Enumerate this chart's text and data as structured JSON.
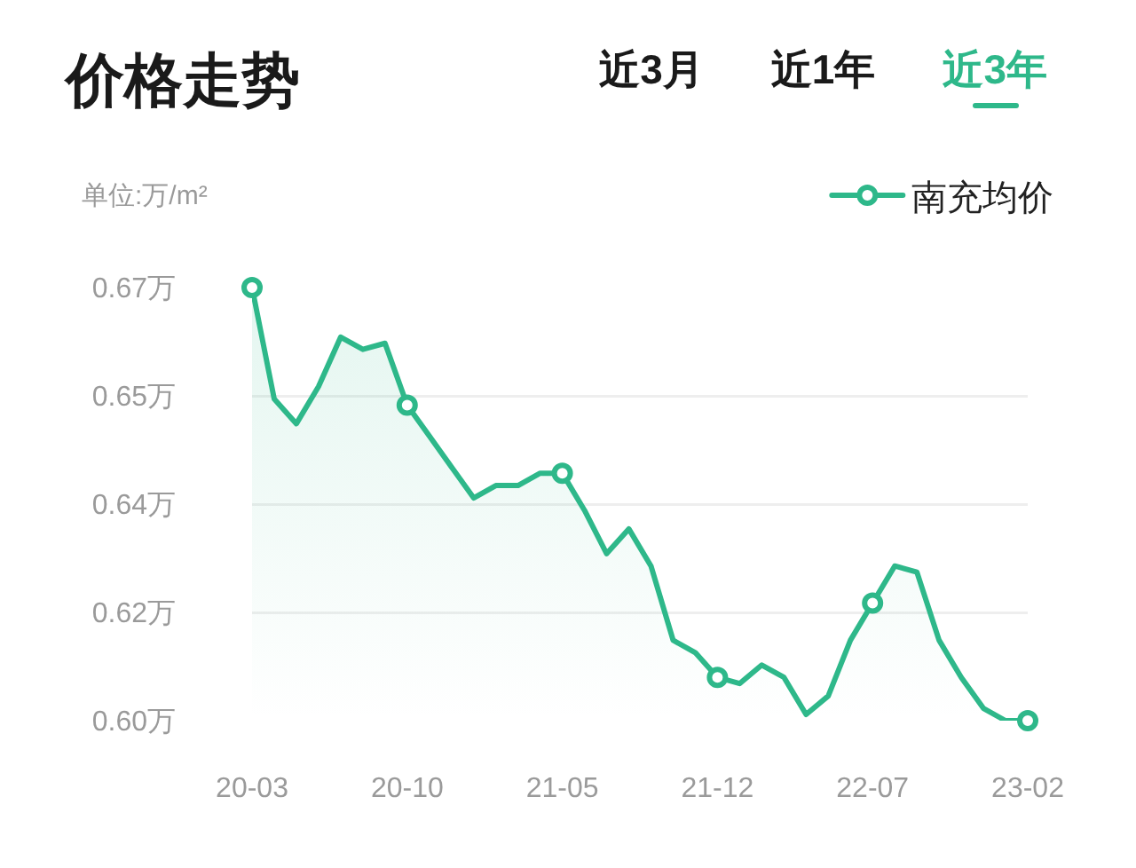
{
  "chart_data": {
    "type": "area",
    "title": "价格走势",
    "ylabel": "单位:万/m²",
    "annotations": [
      "近3月",
      "近1年",
      "近3年"
    ],
    "categories": [
      "20-03",
      null,
      null,
      null,
      null,
      null,
      null,
      "20-10",
      null,
      null,
      null,
      null,
      null,
      null,
      "21-05",
      null,
      null,
      null,
      null,
      null,
      null,
      "21-12",
      null,
      null,
      null,
      null,
      null,
      null,
      "22-07",
      null,
      null,
      null,
      null,
      null,
      null,
      "23-02"
    ],
    "series": [
      {
        "name": "南充均价",
        "color": "#2eb88a",
        "values": [
          0.67,
          0.652,
          0.648,
          0.654,
          0.662,
          0.66,
          0.661,
          0.651,
          0.646,
          0.641,
          0.636,
          0.638,
          0.638,
          0.64,
          0.64,
          0.634,
          0.627,
          0.631,
          0.625,
          0.613,
          0.611,
          0.607,
          0.606,
          0.609,
          0.607,
          0.601,
          0.604,
          0.613,
          0.619,
          0.625,
          0.624,
          0.613,
          0.607,
          0.602,
          0.6,
          0.6
        ]
      },
      {
        "type": "scatter",
        "color": "#2eb88a",
        "marker": "circle",
        "values": [
          0.67,
          null,
          null,
          null,
          null,
          null,
          null,
          0.651,
          null,
          null,
          null,
          null,
          null,
          null,
          0.64,
          null,
          null,
          null,
          null,
          null,
          null,
          0.607,
          null,
          null,
          null,
          null,
          null,
          null,
          0.619,
          null,
          null,
          null,
          null,
          null,
          null,
          0.6
        ]
      }
    ],
    "ylim": [
      0.6,
      0.67
    ],
    "yticks": [
      {
        "value": 0.6,
        "label": "0.60万"
      },
      {
        "value": 0.6175,
        "label": "0.62万"
      },
      {
        "value": 0.635,
        "label": "0.64万"
      },
      {
        "value": 0.6525,
        "label": "0.65万"
      },
      {
        "value": 0.67,
        "label": "0.67万"
      }
    ],
    "grid": "y",
    "legend": "top right",
    "line_style": "solid"
  }
}
